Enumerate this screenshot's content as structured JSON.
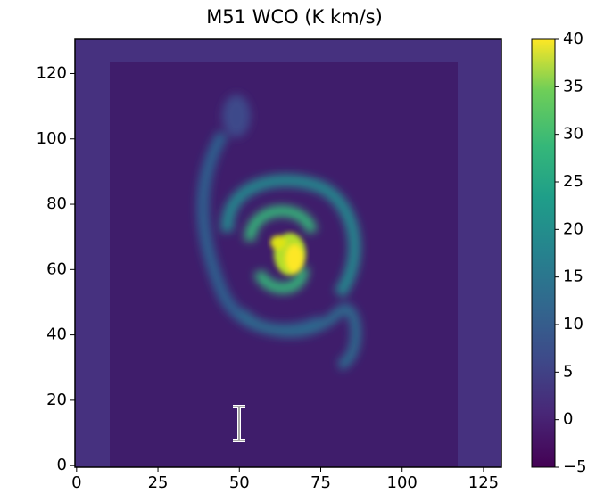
{
  "chart_data": {
    "type": "image",
    "title": "M51  WCO (K km/s)",
    "xlim": [
      -0.5,
      130.5
    ],
    "ylim": [
      -0.5,
      130.5
    ],
    "xticks": [
      0,
      25,
      50,
      75,
      100,
      125
    ],
    "yticks": [
      0,
      20,
      40,
      60,
      80,
      100,
      120
    ],
    "colorbar": {
      "clim": [
        -5,
        40
      ],
      "colormap": "viridis",
      "ticks": [
        {
          "value": -5,
          "label": "−5"
        },
        0,
        5,
        10,
        15,
        20,
        25,
        30,
        35,
        40
      ]
    }
  }
}
